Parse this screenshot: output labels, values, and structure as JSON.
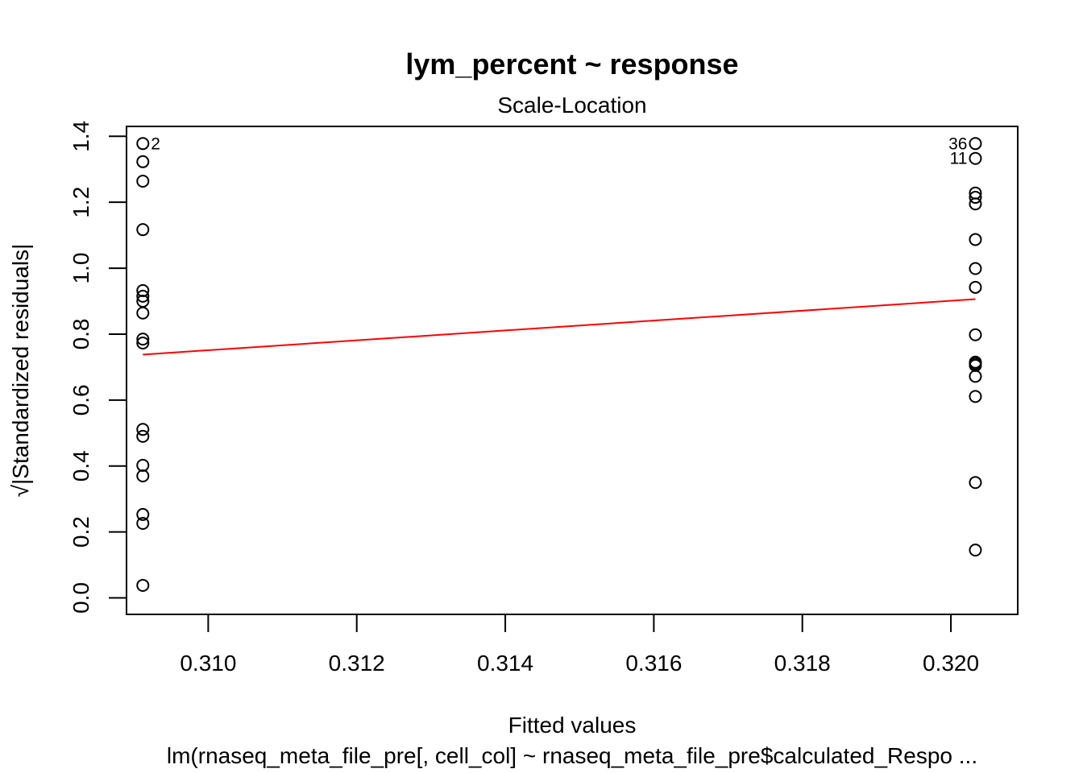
{
  "chart_data": {
    "type": "scatter",
    "title": "lym_percent ~ response",
    "subtitle": "Scale-Location",
    "xlabel": "Fitted values",
    "ylabel_prefix": "√",
    "ylabel": "|Standardized residuals|",
    "caption": "lm(rnaseq_meta_file_pre[, cell_col] ~ rnaseq_meta_file_pre$calculated_Respo ...",
    "xlim": [
      0.3089,
      0.3209
    ],
    "ylim": [
      -0.05,
      1.43
    ],
    "x_ticks": [
      0.31,
      0.312,
      0.314,
      0.316,
      0.318,
      0.32
    ],
    "x_tick_labels": [
      "0.310",
      "0.312",
      "0.314",
      "0.316",
      "0.318",
      "0.320"
    ],
    "y_ticks": [
      0.0,
      0.2,
      0.4,
      0.6,
      0.8,
      1.0,
      1.2,
      1.4
    ],
    "y_tick_labels": [
      "0.0",
      "0.2",
      "0.4",
      "0.6",
      "0.8",
      "1.0",
      "1.2",
      "1.4"
    ],
    "points": [
      {
        "x": 0.30912,
        "y": 1.378
      },
      {
        "x": 0.30912,
        "y": 1.323
      },
      {
        "x": 0.30912,
        "y": 1.264
      },
      {
        "x": 0.30912,
        "y": 1.117
      },
      {
        "x": 0.30912,
        "y": 0.932
      },
      {
        "x": 0.30912,
        "y": 0.915
      },
      {
        "x": 0.30912,
        "y": 0.9
      },
      {
        "x": 0.30912,
        "y": 0.864
      },
      {
        "x": 0.30912,
        "y": 0.785
      },
      {
        "x": 0.30912,
        "y": 0.773
      },
      {
        "x": 0.30912,
        "y": 0.511
      },
      {
        "x": 0.30912,
        "y": 0.49
      },
      {
        "x": 0.30912,
        "y": 0.402
      },
      {
        "x": 0.30912,
        "y": 0.37
      },
      {
        "x": 0.30912,
        "y": 0.253
      },
      {
        "x": 0.30912,
        "y": 0.226
      },
      {
        "x": 0.30912,
        "y": 0.038
      },
      {
        "x": 0.32033,
        "y": 1.378
      },
      {
        "x": 0.32033,
        "y": 1.333
      },
      {
        "x": 0.32033,
        "y": 1.228
      },
      {
        "x": 0.32033,
        "y": 1.215
      },
      {
        "x": 0.32033,
        "y": 1.195
      },
      {
        "x": 0.32033,
        "y": 1.087
      },
      {
        "x": 0.32033,
        "y": 0.999
      },
      {
        "x": 0.32033,
        "y": 0.942
      },
      {
        "x": 0.32033,
        "y": 0.798
      },
      {
        "x": 0.32033,
        "y": 0.715
      },
      {
        "x": 0.32033,
        "y": 0.71
      },
      {
        "x": 0.32033,
        "y": 0.705
      },
      {
        "x": 0.32033,
        "y": 0.672
      },
      {
        "x": 0.32033,
        "y": 0.611
      },
      {
        "x": 0.32033,
        "y": 0.35
      },
      {
        "x": 0.32033,
        "y": 0.145
      }
    ],
    "point_labels": [
      {
        "text": "2",
        "x": 0.30912,
        "y": 1.378,
        "side": "right"
      },
      {
        "text": "36",
        "x": 0.32033,
        "y": 1.378,
        "side": "left"
      },
      {
        "text": "11",
        "x": 0.32033,
        "y": 1.333,
        "side": "left"
      }
    ],
    "smooth_line": {
      "color": "#ff0000",
      "x": [
        0.30912,
        0.32033
      ],
      "y": [
        0.738,
        0.906
      ]
    },
    "point_color": "#000000"
  }
}
